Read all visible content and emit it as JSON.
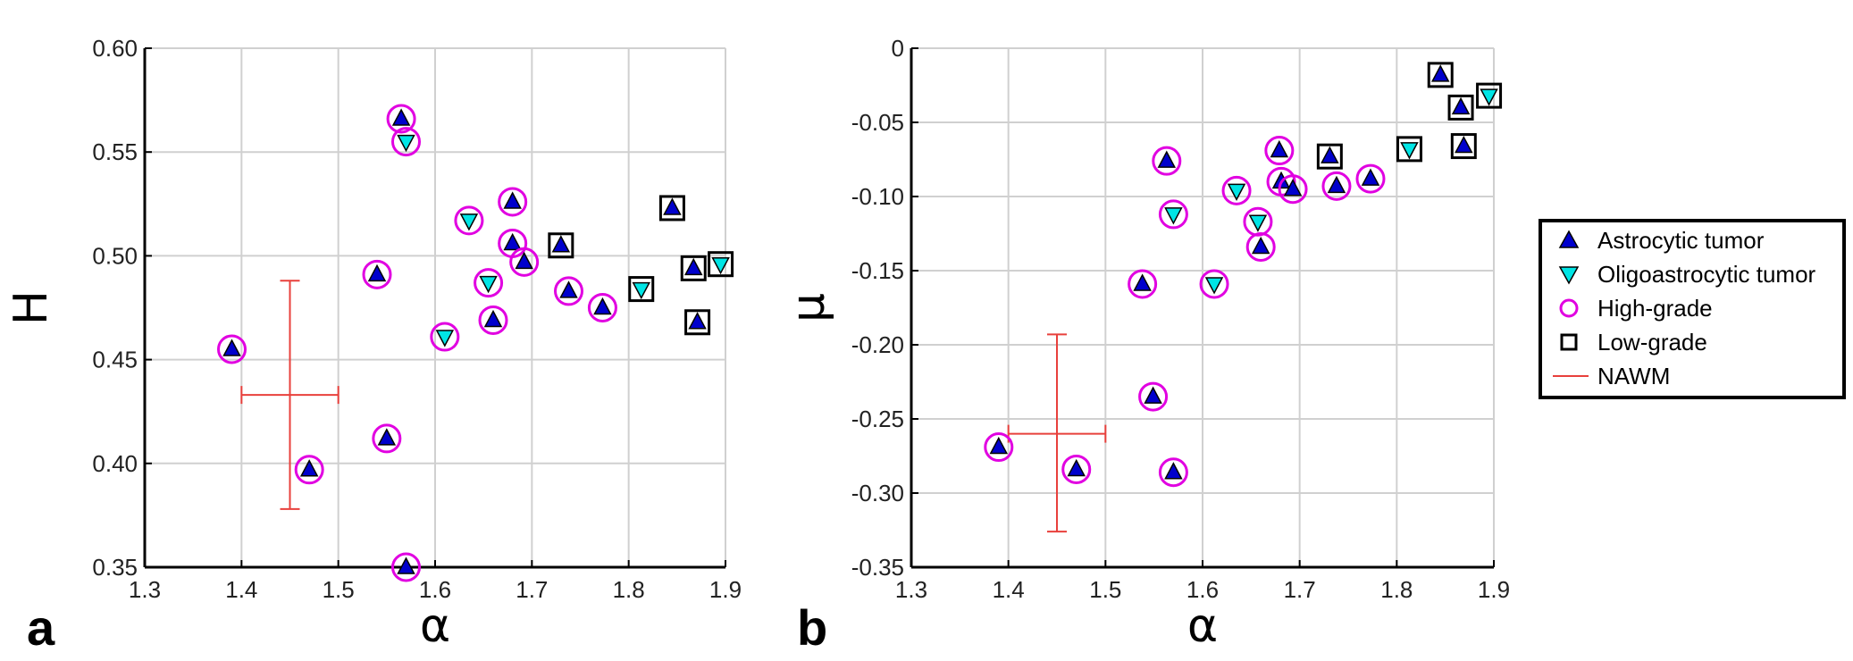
{
  "chart_data": [
    {
      "type": "scatter",
      "panel_label": "a",
      "xlabel": "α",
      "ylabel": "H",
      "xlim": [
        1.3,
        1.9
      ],
      "ylim": [
        0.35,
        0.6
      ],
      "x_ticks": [
        "1.3",
        "1.4",
        "1.5",
        "1.6",
        "1.7",
        "1.8",
        "1.9"
      ],
      "y_ticks": [
        "0.35",
        "0.40",
        "0.45",
        "0.50",
        "0.55",
        "0.60"
      ],
      "grid": true,
      "points": [
        {
          "x": 1.39,
          "y": 0.455,
          "type": "astrocytic",
          "grade": "high"
        },
        {
          "x": 1.47,
          "y": 0.397,
          "type": "astrocytic",
          "grade": "high"
        },
        {
          "x": 1.54,
          "y": 0.491,
          "type": "astrocytic",
          "grade": "high"
        },
        {
          "x": 1.55,
          "y": 0.412,
          "type": "astrocytic",
          "grade": "high"
        },
        {
          "x": 1.565,
          "y": 0.566,
          "type": "astrocytic",
          "grade": "high"
        },
        {
          "x": 1.57,
          "y": 0.555,
          "type": "oligoastrocytic",
          "grade": "high"
        },
        {
          "x": 1.57,
          "y": 0.35,
          "type": "astrocytic",
          "grade": "high"
        },
        {
          "x": 1.61,
          "y": 0.461,
          "type": "oligoastrocytic",
          "grade": "high"
        },
        {
          "x": 1.635,
          "y": 0.517,
          "type": "oligoastrocytic",
          "grade": "high"
        },
        {
          "x": 1.655,
          "y": 0.487,
          "type": "oligoastrocytic",
          "grade": "high"
        },
        {
          "x": 1.66,
          "y": 0.469,
          "type": "astrocytic",
          "grade": "high"
        },
        {
          "x": 1.68,
          "y": 0.526,
          "type": "astrocytic",
          "grade": "high"
        },
        {
          "x": 1.68,
          "y": 0.506,
          "type": "astrocytic",
          "grade": "high"
        },
        {
          "x": 1.692,
          "y": 0.497,
          "type": "astrocytic",
          "grade": "high"
        },
        {
          "x": 1.738,
          "y": 0.483,
          "type": "astrocytic",
          "grade": "high"
        },
        {
          "x": 1.773,
          "y": 0.475,
          "type": "astrocytic",
          "grade": "high"
        },
        {
          "x": 1.73,
          "y": 0.505,
          "type": "astrocytic",
          "grade": "low"
        },
        {
          "x": 1.813,
          "y": 0.484,
          "type": "oligoastrocytic",
          "grade": "low"
        },
        {
          "x": 1.845,
          "y": 0.523,
          "type": "astrocytic",
          "grade": "low"
        },
        {
          "x": 1.867,
          "y": 0.494,
          "type": "astrocytic",
          "grade": "low"
        },
        {
          "x": 1.871,
          "y": 0.468,
          "type": "astrocytic",
          "grade": "low"
        },
        {
          "x": 1.895,
          "y": 0.496,
          "type": "oligoastrocytic",
          "grade": "low"
        }
      ],
      "nawm": {
        "x": 1.45,
        "y": 0.433,
        "x_low": 1.4,
        "x_high": 1.5,
        "y_low": 0.378,
        "y_high": 0.488
      }
    },
    {
      "type": "scatter",
      "panel_label": "b",
      "xlabel": "α",
      "ylabel": "μ",
      "xlim": [
        1.3,
        1.9
      ],
      "ylim": [
        -0.35,
        0
      ],
      "x_ticks": [
        "1.3",
        "1.4",
        "1.5",
        "1.6",
        "1.7",
        "1.8",
        "1.9"
      ],
      "y_ticks": [
        "-0.35",
        "-0.30",
        "-0.25",
        "-0.20",
        "-0.15",
        "-0.10",
        "-0.05",
        "0"
      ],
      "grid": true,
      "points": [
        {
          "x": 1.39,
          "y": -0.269,
          "type": "astrocytic",
          "grade": "high"
        },
        {
          "x": 1.47,
          "y": -0.284,
          "type": "astrocytic",
          "grade": "high"
        },
        {
          "x": 1.538,
          "y": -0.159,
          "type": "astrocytic",
          "grade": "high"
        },
        {
          "x": 1.549,
          "y": -0.235,
          "type": "astrocytic",
          "grade": "high"
        },
        {
          "x": 1.563,
          "y": -0.076,
          "type": "astrocytic",
          "grade": "high"
        },
        {
          "x": 1.57,
          "y": -0.112,
          "type": "oligoastrocytic",
          "grade": "high"
        },
        {
          "x": 1.57,
          "y": -0.286,
          "type": "astrocytic",
          "grade": "high"
        },
        {
          "x": 1.612,
          "y": -0.159,
          "type": "oligoastrocytic",
          "grade": "high"
        },
        {
          "x": 1.635,
          "y": -0.096,
          "type": "oligoastrocytic",
          "grade": "high"
        },
        {
          "x": 1.657,
          "y": -0.117,
          "type": "oligoastrocytic",
          "grade": "high"
        },
        {
          "x": 1.66,
          "y": -0.134,
          "type": "astrocytic",
          "grade": "high"
        },
        {
          "x": 1.679,
          "y": -0.069,
          "type": "astrocytic",
          "grade": "high"
        },
        {
          "x": 1.681,
          "y": -0.09,
          "type": "astrocytic",
          "grade": "high"
        },
        {
          "x": 1.693,
          "y": -0.095,
          "type": "astrocytic",
          "grade": "high"
        },
        {
          "x": 1.738,
          "y": -0.093,
          "type": "astrocytic",
          "grade": "high"
        },
        {
          "x": 1.773,
          "y": -0.088,
          "type": "astrocytic",
          "grade": "high"
        },
        {
          "x": 1.731,
          "y": -0.073,
          "type": "astrocytic",
          "grade": "low"
        },
        {
          "x": 1.813,
          "y": -0.068,
          "type": "oligoastrocytic",
          "grade": "low"
        },
        {
          "x": 1.845,
          "y": -0.018,
          "type": "astrocytic",
          "grade": "low"
        },
        {
          "x": 1.866,
          "y": -0.04,
          "type": "astrocytic",
          "grade": "low"
        },
        {
          "x": 1.869,
          "y": -0.066,
          "type": "astrocytic",
          "grade": "low"
        },
        {
          "x": 1.895,
          "y": -0.032,
          "type": "oligoastrocytic",
          "grade": "low"
        }
      ],
      "nawm": {
        "x": 1.45,
        "y": -0.26,
        "x_low": 1.4,
        "x_high": 1.5,
        "y_low": -0.326,
        "y_high": -0.193
      }
    }
  ],
  "legend": {
    "placement": "right",
    "entries": [
      {
        "label": "Astrocytic tumor",
        "symbol": "triangle-up"
      },
      {
        "label": "Oligoastrocytic tumor",
        "symbol": "triangle-down"
      },
      {
        "label": "High-grade",
        "symbol": "circle"
      },
      {
        "label": "Low-grade",
        "symbol": "square"
      },
      {
        "label": "NAWM",
        "symbol": "line"
      }
    ]
  },
  "colors": {
    "astrocytic": "#0000cc",
    "oligoastrocytic": "#00e5e5",
    "high_grade": "#e100e1",
    "low_grade": "#000000",
    "nawm": "#e8403c",
    "grid": "#d0d0d0",
    "axis": "#000000"
  }
}
